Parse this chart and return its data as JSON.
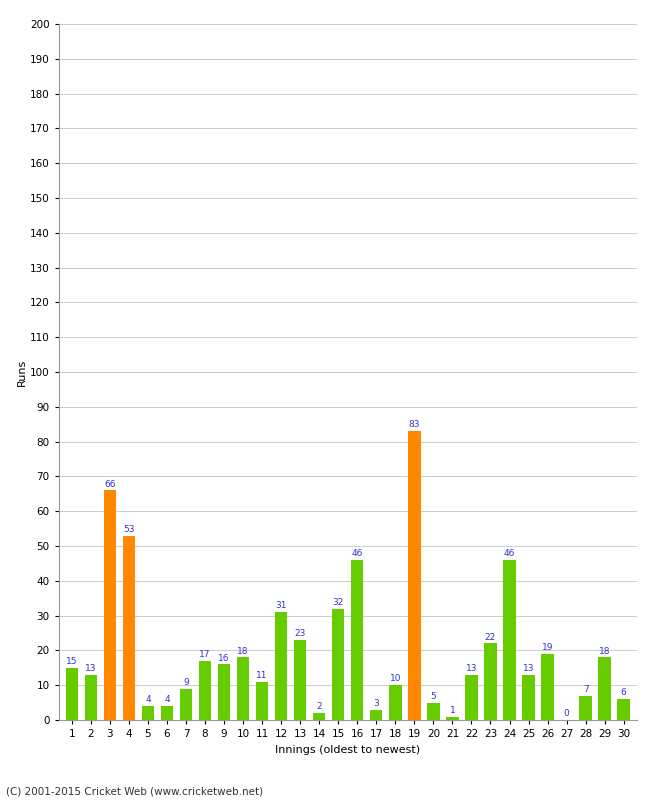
{
  "innings": [
    1,
    2,
    3,
    4,
    5,
    6,
    7,
    8,
    9,
    10,
    11,
    12,
    13,
    14,
    15,
    16,
    17,
    18,
    19,
    20,
    21,
    22,
    23,
    24,
    25,
    26,
    27,
    28,
    29,
    30
  ],
  "values": [
    15,
    13,
    66,
    53,
    4,
    4,
    9,
    17,
    16,
    18,
    11,
    31,
    23,
    2,
    32,
    46,
    3,
    10,
    83,
    5,
    1,
    13,
    22,
    46,
    13,
    19,
    0,
    7,
    18,
    6
  ],
  "colors": [
    "#66cc00",
    "#66cc00",
    "#ff8800",
    "#ff8800",
    "#66cc00",
    "#66cc00",
    "#66cc00",
    "#66cc00",
    "#66cc00",
    "#66cc00",
    "#66cc00",
    "#66cc00",
    "#66cc00",
    "#66cc00",
    "#66cc00",
    "#66cc00",
    "#66cc00",
    "#66cc00",
    "#ff8800",
    "#66cc00",
    "#66cc00",
    "#66cc00",
    "#66cc00",
    "#66cc00",
    "#66cc00",
    "#66cc00",
    "#66cc00",
    "#66cc00",
    "#66cc00",
    "#66cc00"
  ],
  "ylabel": "Runs",
  "xlabel": "Innings (oldest to newest)",
  "ylim": [
    0,
    200
  ],
  "yticks": [
    0,
    10,
    20,
    30,
    40,
    50,
    60,
    70,
    80,
    90,
    100,
    110,
    120,
    130,
    140,
    150,
    160,
    170,
    180,
    190,
    200
  ],
  "background_color": "#ffffff",
  "grid_color": "#cccccc",
  "label_color": "#3333cc",
  "bar_label_fontsize": 6.5,
  "axis_fontsize": 8,
  "tick_fontsize": 7.5,
  "footer": "(C) 2001-2015 Cricket Web (www.cricketweb.net)"
}
